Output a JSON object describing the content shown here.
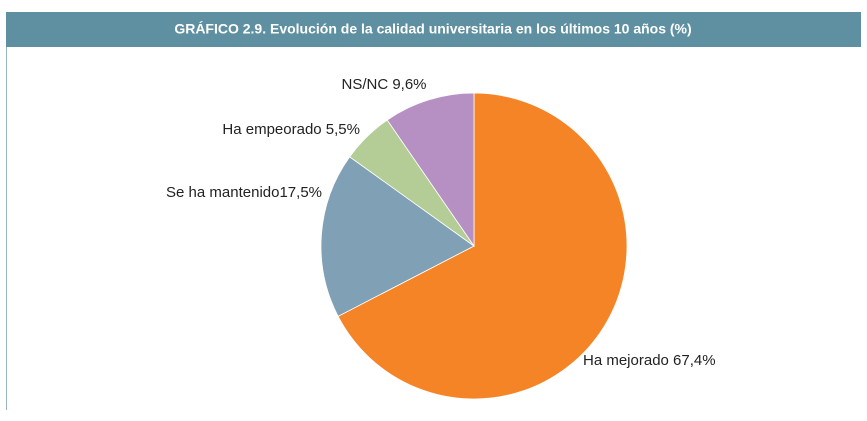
{
  "chart_data": {
    "type": "pie",
    "title": "GRÁFICO 2.9. Evolución de la calidad universitaria en los últimos 10 años (%)",
    "categories": [
      "Ha mejorado",
      "Se ha mantenido",
      "Ha empeorado",
      "NS/NC"
    ],
    "values": [
      67.4,
      17.5,
      5.5,
      9.6
    ],
    "value_labels": [
      "Ha mejorado 67,4%",
      "Se ha mantenido17,5%",
      "Ha empeorado 5,5%",
      "NS/NC 9,6%"
    ],
    "colors": [
      "#f58426",
      "#7fa0b5",
      "#b4cd97",
      "#b68fc3"
    ]
  }
}
